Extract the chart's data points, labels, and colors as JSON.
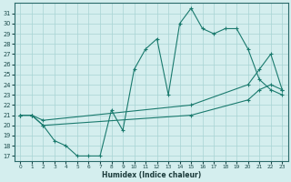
{
  "xlabel": "Humidex (Indice chaleur)",
  "background_color": "#d4eeee",
  "grid_color": "#a8d4d4",
  "line_color": "#1a7a6e",
  "xlim": [
    -0.5,
    23.5
  ],
  "ylim": [
    16.5,
    32.0
  ],
  "xticks": [
    0,
    1,
    2,
    3,
    4,
    5,
    6,
    7,
    8,
    9,
    10,
    11,
    12,
    13,
    14,
    15,
    16,
    17,
    18,
    19,
    20,
    21,
    22,
    23
  ],
  "yticks": [
    17,
    18,
    19,
    20,
    21,
    22,
    23,
    24,
    25,
    26,
    27,
    28,
    29,
    30,
    31
  ],
  "line1_x": [
    0,
    1,
    2,
    3,
    4,
    5,
    6,
    7,
    8,
    9,
    10,
    11,
    12,
    13,
    14,
    15,
    16,
    17,
    18,
    19,
    20,
    21,
    22,
    23
  ],
  "line1_y": [
    21.0,
    21.0,
    20.0,
    18.5,
    18.0,
    17.0,
    17.0,
    17.0,
    21.5,
    19.5,
    25.5,
    27.5,
    28.5,
    23.0,
    30.0,
    31.5,
    29.5,
    29.0,
    29.5,
    29.5,
    27.5,
    24.5,
    23.5,
    23.0
  ],
  "line2_x": [
    0,
    1,
    2,
    15,
    20,
    21,
    22,
    23
  ],
  "line2_y": [
    21.0,
    21.0,
    20.5,
    22.0,
    24.0,
    25.5,
    27.0,
    23.5
  ],
  "line3_x": [
    0,
    1,
    2,
    15,
    20,
    21,
    22,
    23
  ],
  "line3_y": [
    21.0,
    21.0,
    20.0,
    21.0,
    22.5,
    23.5,
    24.0,
    23.5
  ]
}
